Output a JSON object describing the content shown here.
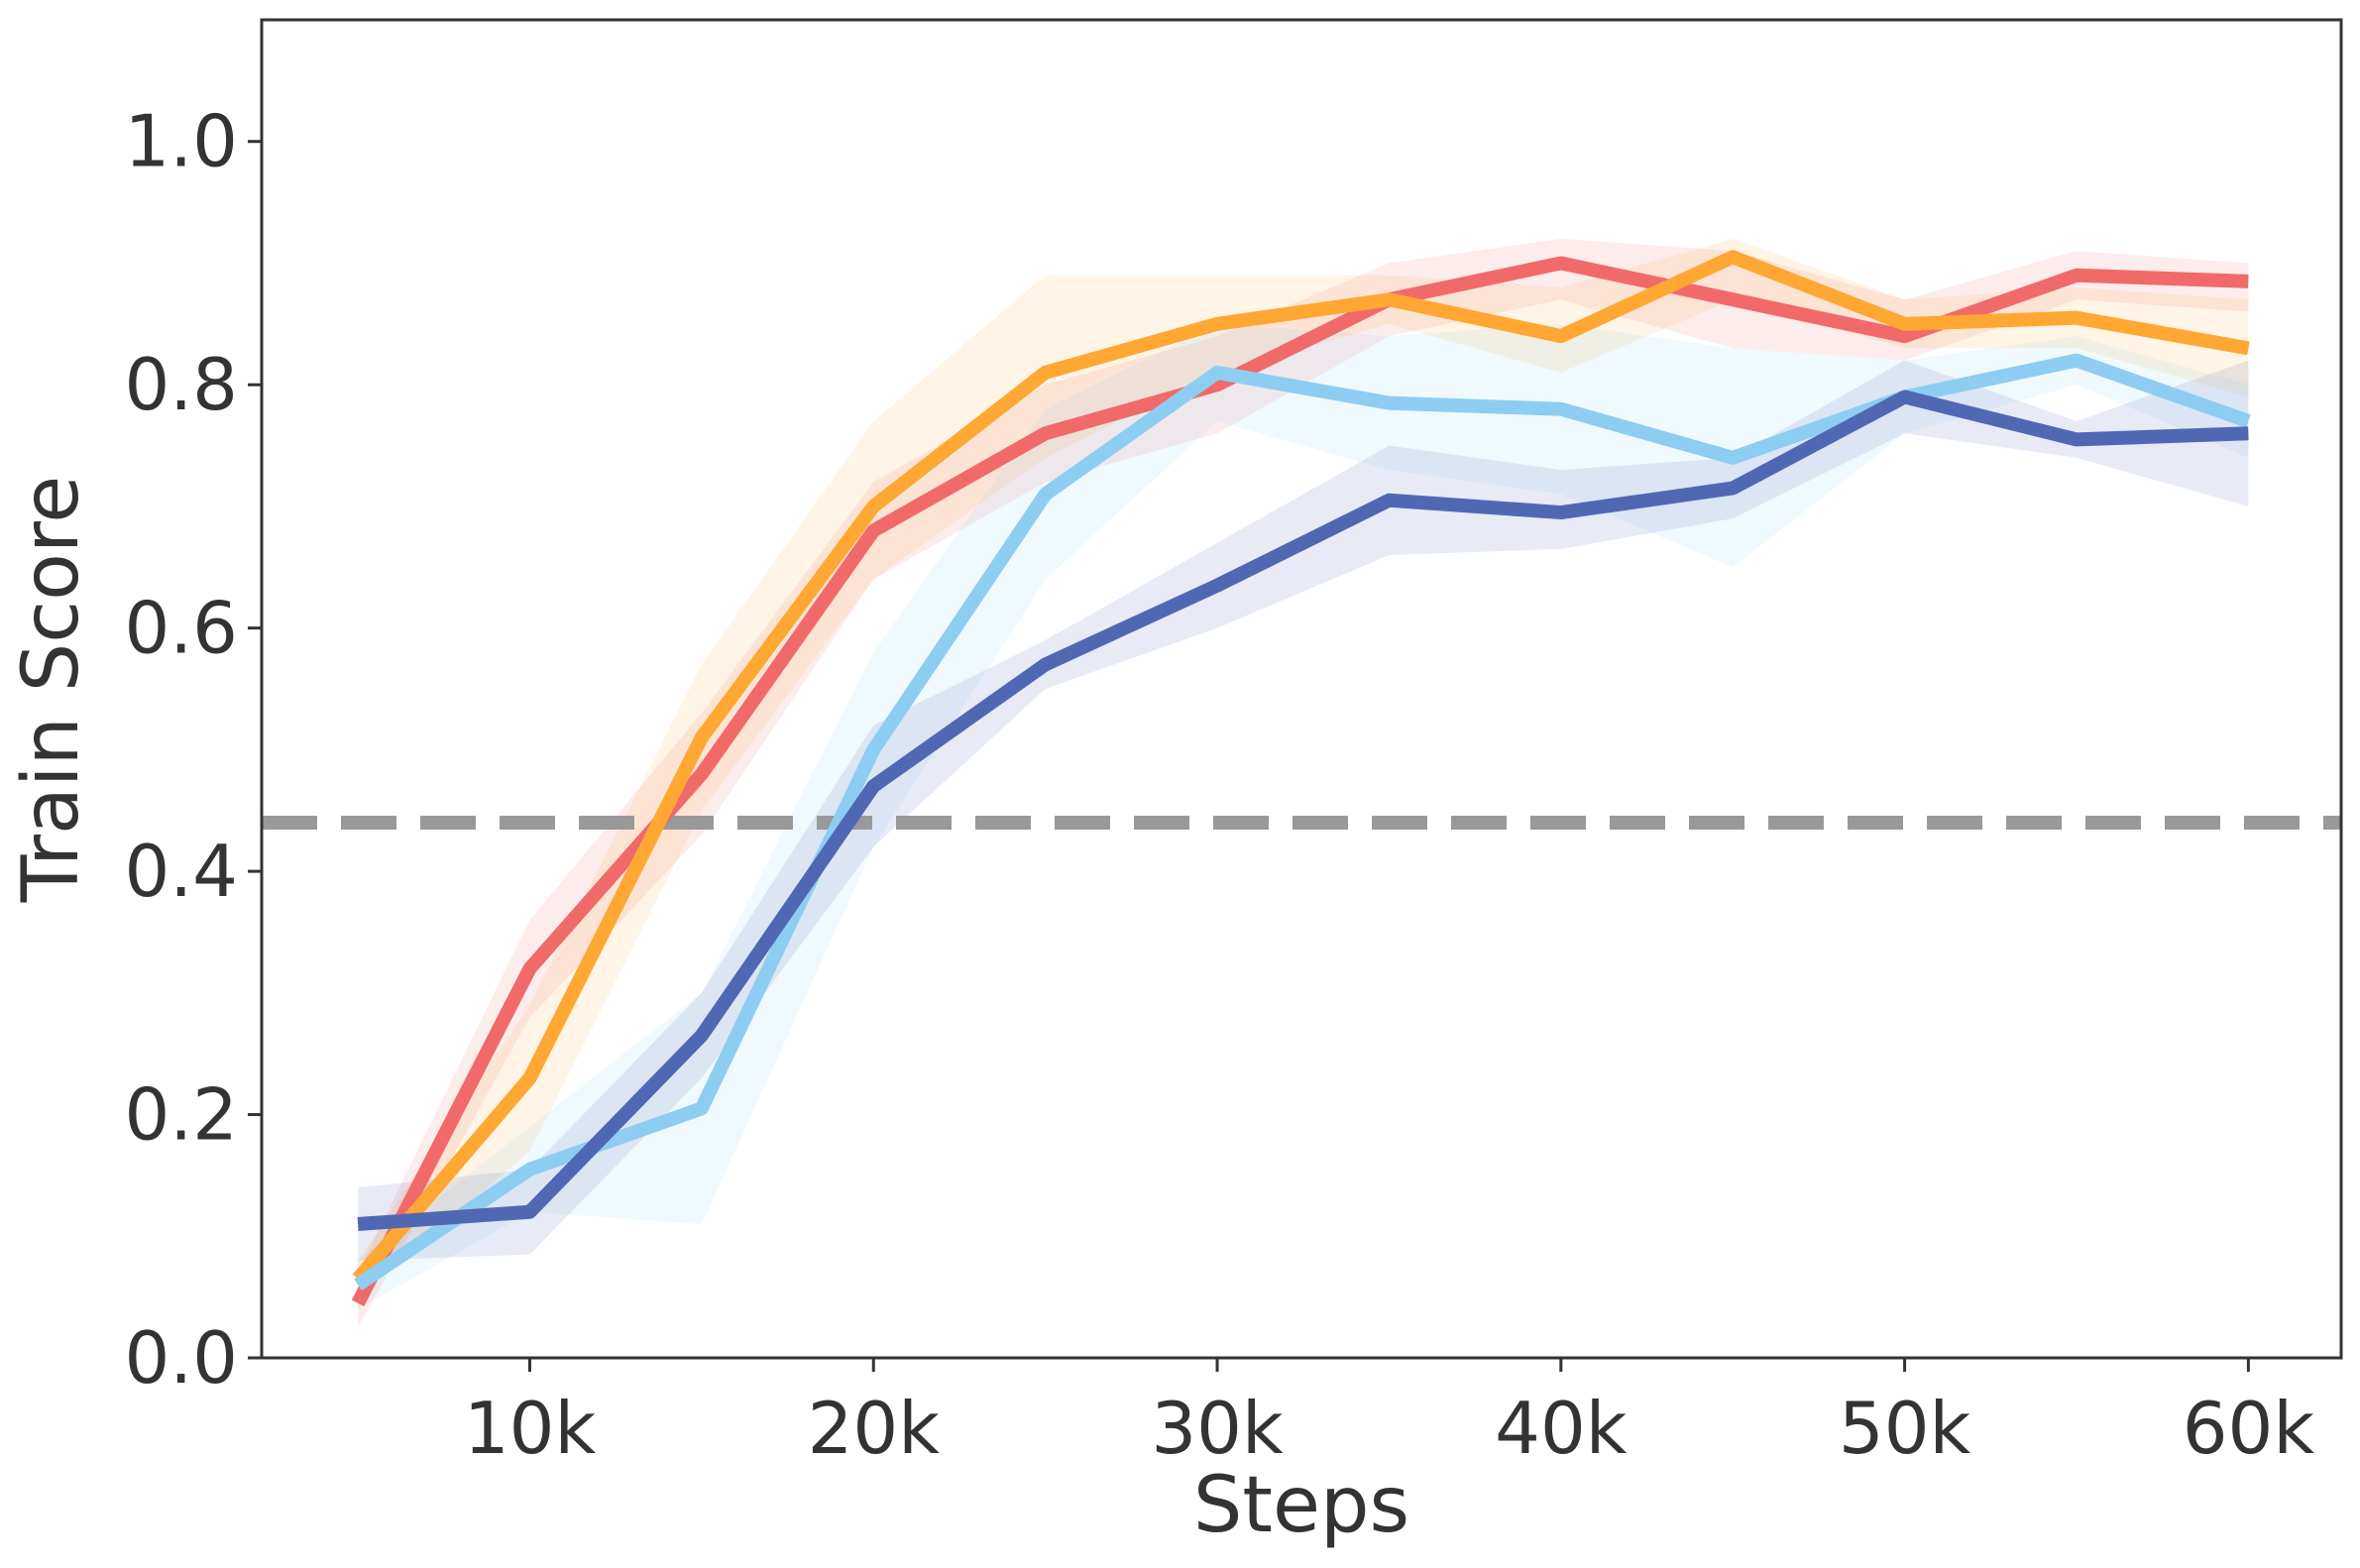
{
  "chart_data": {
    "type": "line",
    "xlabel": "Steps",
    "ylabel": "Train Score",
    "xlim": [
      2200,
      62700
    ],
    "ylim": [
      0.0,
      1.1
    ],
    "x_ticks": [
      {
        "value": 10000,
        "label": "10k"
      },
      {
        "value": 20000,
        "label": "20k"
      },
      {
        "value": 30000,
        "label": "30k"
      },
      {
        "value": 40000,
        "label": "40k"
      },
      {
        "value": 50000,
        "label": "50k"
      },
      {
        "value": 60000,
        "label": "60k"
      }
    ],
    "y_ticks": [
      {
        "value": 0.0,
        "label": "0.0"
      },
      {
        "value": 0.2,
        "label": "0.2"
      },
      {
        "value": 0.4,
        "label": "0.4"
      },
      {
        "value": 0.6,
        "label": "0.6"
      },
      {
        "value": 0.8,
        "label": "0.8"
      },
      {
        "value": 1.0,
        "label": "1.0"
      }
    ],
    "grid": false,
    "legend": "none",
    "x": [
      5000,
      10000,
      15000,
      20000,
      25000,
      30000,
      35000,
      40000,
      45000,
      50000,
      55000,
      60000
    ],
    "reference_line": {
      "y": 0.44,
      "color": "#999999",
      "style": "dashed"
    },
    "series": [
      {
        "color": "#F06A6A",
        "values": [
          0.045,
          0.32,
          0.48,
          0.68,
          0.76,
          0.8,
          0.87,
          0.9,
          0.87,
          0.84,
          0.89,
          0.885
        ],
        "lower": [
          0.025,
          0.28,
          0.43,
          0.64,
          0.72,
          0.76,
          0.84,
          0.87,
          0.83,
          0.82,
          0.87,
          0.86
        ],
        "upper": [
          0.07,
          0.36,
          0.53,
          0.72,
          0.8,
          0.84,
          0.9,
          0.92,
          0.91,
          0.87,
          0.91,
          0.9
        ]
      },
      {
        "color": "#FFA733",
        "values": [
          0.065,
          0.23,
          0.51,
          0.7,
          0.81,
          0.85,
          0.87,
          0.84,
          0.905,
          0.85,
          0.855,
          0.83
        ],
        "lower": [
          0.05,
          0.17,
          0.45,
          0.64,
          0.74,
          0.81,
          0.85,
          0.81,
          0.87,
          0.83,
          0.83,
          0.79
        ],
        "upper": [
          0.08,
          0.29,
          0.57,
          0.77,
          0.89,
          0.89,
          0.89,
          0.88,
          0.92,
          0.87,
          0.88,
          0.87
        ]
      },
      {
        "color": "#8ECDF2",
        "values": [
          0.06,
          0.155,
          0.205,
          0.5,
          0.71,
          0.81,
          0.785,
          0.78,
          0.74,
          0.79,
          0.82,
          0.77
        ],
        "lower": [
          0.04,
          0.12,
          0.11,
          0.42,
          0.64,
          0.77,
          0.73,
          0.71,
          0.65,
          0.76,
          0.8,
          0.74
        ],
        "upper": [
          0.08,
          0.19,
          0.3,
          0.58,
          0.78,
          0.85,
          0.84,
          0.85,
          0.83,
          0.82,
          0.84,
          0.8
        ]
      },
      {
        "color": "#5068B4",
        "values": [
          0.11,
          0.12,
          0.265,
          0.47,
          0.57,
          0.635,
          0.705,
          0.695,
          0.715,
          0.79,
          0.755,
          0.76
        ],
        "lower": [
          0.08,
          0.085,
          0.23,
          0.42,
          0.55,
          0.6,
          0.66,
          0.665,
          0.69,
          0.76,
          0.74,
          0.7
        ],
        "upper": [
          0.14,
          0.155,
          0.3,
          0.52,
          0.59,
          0.67,
          0.75,
          0.73,
          0.74,
          0.82,
          0.77,
          0.82
        ]
      }
    ]
  }
}
